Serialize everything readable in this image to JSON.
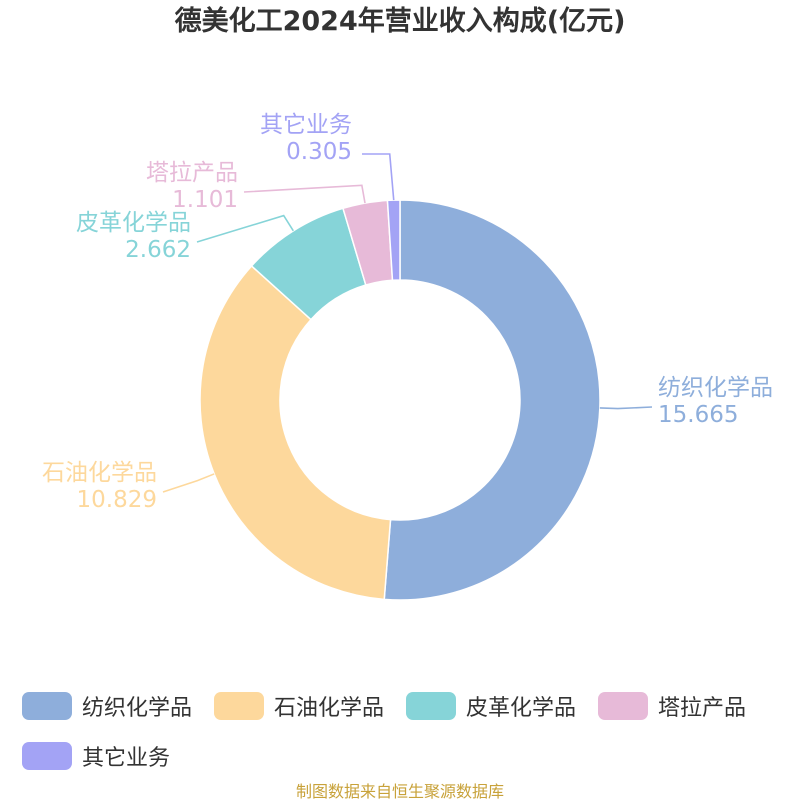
{
  "chart_data": {
    "type": "pie",
    "title": "德美化工2024年营业收入构成(亿元)",
    "categories": [
      "纺织化学品",
      "石油化学品",
      "皮革化学品",
      "塔拉产品",
      "其它业务"
    ],
    "values": [
      15.665,
      10.829,
      2.662,
      1.101,
      0.305
    ],
    "value_labels": [
      "15.665",
      "10.829",
      "2.662",
      "1.101",
      "0.305"
    ],
    "colors": [
      "#8eaedb",
      "#fdd89c",
      "#86d4d8",
      "#e7bad8",
      "#a3a3f5"
    ],
    "legend": "bottom",
    "donut": true
  },
  "footer": {
    "source": "制图数据来自恒生聚源数据库"
  }
}
